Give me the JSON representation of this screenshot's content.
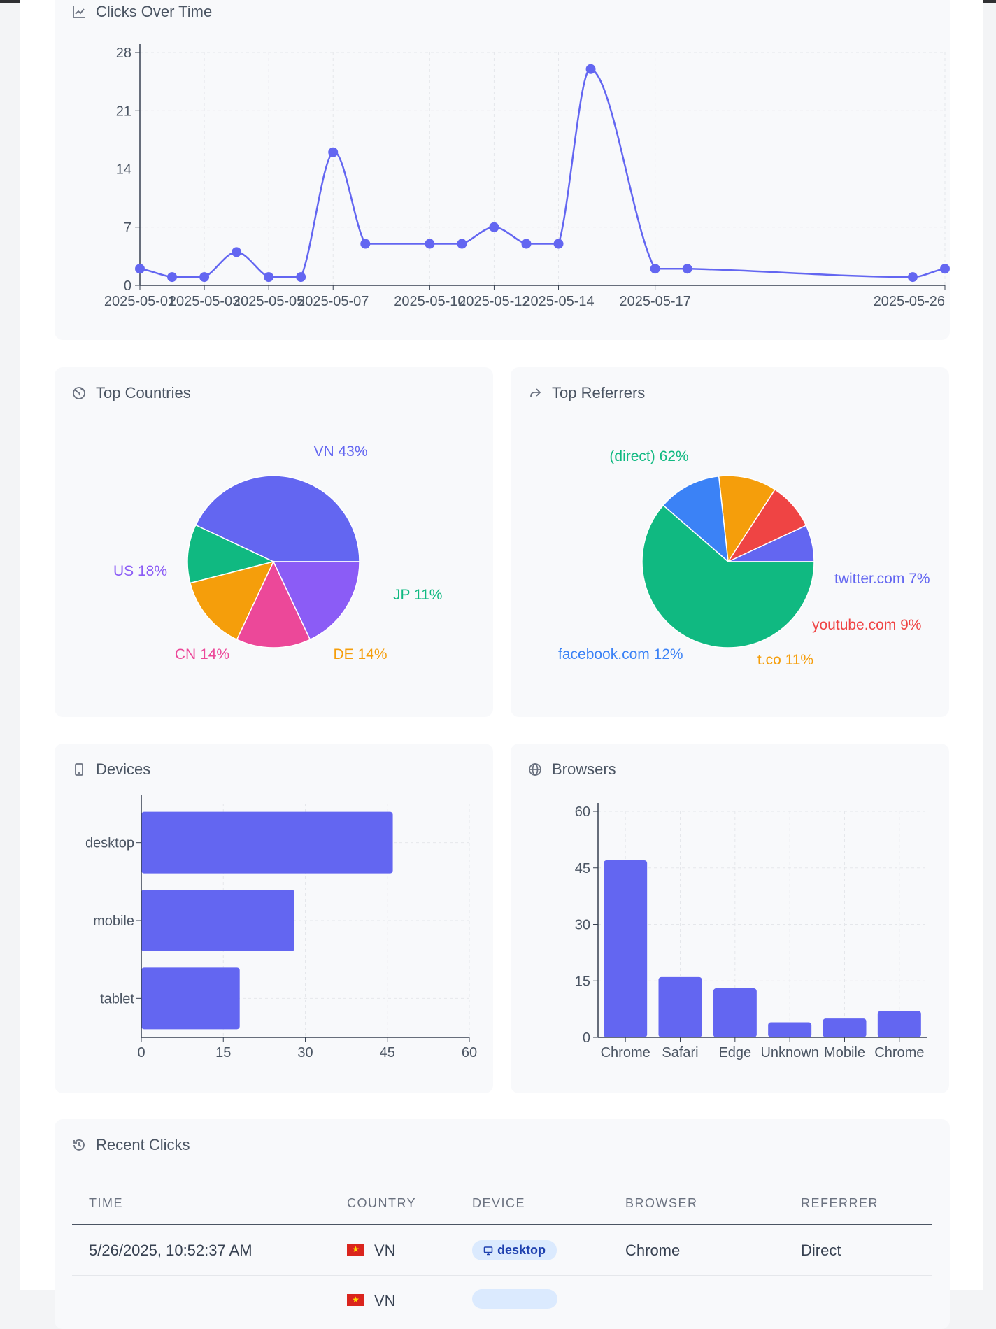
{
  "colors": {
    "primary": "#6366f1",
    "green": "#10b981",
    "purple": "#8b5cf6",
    "pink": "#ec4899",
    "orange": "#f59e0b",
    "red": "#ef4444",
    "blue": "#3b82f6"
  },
  "cards": {
    "clicks_over_time": {
      "title": "Clicks Over Time",
      "icon": "line-chart-icon"
    },
    "top_countries": {
      "title": "Top Countries",
      "icon": "globe-icon"
    },
    "top_referrers": {
      "title": "Top Referrers",
      "icon": "share-arrow-icon"
    },
    "devices": {
      "title": "Devices",
      "icon": "mobile-device-icon"
    },
    "browsers": {
      "title": "Browsers",
      "icon": "globe-grid-icon"
    },
    "recent_clicks": {
      "title": "Recent Clicks",
      "icon": "history-icon"
    }
  },
  "chart_data": [
    {
      "id": "clicks",
      "type": "line",
      "title": "Clicks Over Time",
      "x": [
        "2025-05-01",
        "2025-05-02",
        "2025-05-03",
        "2025-05-04",
        "2025-05-05",
        "2025-05-06",
        "2025-05-07",
        "2025-05-08",
        "2025-05-10",
        "2025-05-11",
        "2025-05-12",
        "2025-05-13",
        "2025-05-14",
        "2025-05-15",
        "2025-05-17",
        "2025-05-18",
        "2025-05-25",
        "2025-05-26"
      ],
      "values": [
        2,
        1,
        1,
        4,
        1,
        1,
        16,
        5,
        5,
        5,
        7,
        5,
        5,
        26,
        2,
        2,
        1,
        2
      ],
      "x_tick_labels": [
        "2025-05-01",
        "2025-05-03",
        "2025-05-05",
        "2025-05-07",
        "2025-05-10",
        "2025-05-12",
        "2025-05-14",
        "2025-05-17",
        "2025-05-26"
      ],
      "y_ticks": [
        0,
        7,
        14,
        21,
        28
      ],
      "ylim": [
        0,
        28
      ],
      "grid": true
    },
    {
      "id": "countries",
      "type": "pie",
      "title": "Top Countries",
      "slices": [
        {
          "label": "VN",
          "pct": 43,
          "value": 43,
          "color": "#6366f1"
        },
        {
          "label": "JP",
          "pct": 11,
          "value": 11,
          "color": "#10b981"
        },
        {
          "label": "DE",
          "pct": 14,
          "value": 14,
          "color": "#f59e0b"
        },
        {
          "label": "CN",
          "pct": 14,
          "value": 14,
          "color": "#ec4899"
        },
        {
          "label": "US",
          "pct": 18,
          "value": 18,
          "color": "#8b5cf6"
        }
      ]
    },
    {
      "id": "referrers",
      "type": "pie",
      "title": "Top Referrers",
      "slices": [
        {
          "label": "twitter.com",
          "pct": 7,
          "value": 7,
          "color": "#6366f1"
        },
        {
          "label": "youtube.com",
          "pct": 9,
          "value": 9,
          "color": "#ef4444"
        },
        {
          "label": "t.co",
          "pct": 11,
          "value": 11,
          "color": "#f59e0b"
        },
        {
          "label": "facebook.com",
          "pct": 12,
          "value": 12,
          "color": "#3b82f6"
        },
        {
          "label": "(direct)",
          "pct": 62,
          "value": 62,
          "color": "#10b981"
        }
      ]
    },
    {
      "id": "devices",
      "type": "bar",
      "orientation": "horizontal",
      "title": "Devices",
      "categories": [
        "desktop",
        "mobile",
        "tablet"
      ],
      "values": [
        46,
        28,
        18
      ],
      "x_ticks": [
        0,
        15,
        30,
        45,
        60
      ],
      "xlim": [
        0,
        60
      ],
      "grid": true
    },
    {
      "id": "browsers",
      "type": "bar",
      "title": "Browsers",
      "categories": [
        "Chrome",
        "Safari",
        "Edge",
        "Unknown",
        "Mobile",
        "Chrome"
      ],
      "values": [
        47,
        16,
        13,
        4,
        5,
        7
      ],
      "y_ticks": [
        0,
        15,
        30,
        45,
        60
      ],
      "ylim": [
        0,
        60
      ],
      "grid": true
    }
  ],
  "recent_clicks": {
    "columns": [
      "TIME",
      "COUNTRY",
      "DEVICE",
      "BROWSER",
      "REFERRER"
    ],
    "rows": [
      {
        "time": "5/26/2025, 10:52:37 AM",
        "country": "VN",
        "device": "desktop",
        "browser": "Chrome",
        "referrer": "Direct"
      },
      {
        "time": "",
        "country": "VN",
        "device": "",
        "browser": "",
        "referrer": ""
      }
    ]
  }
}
